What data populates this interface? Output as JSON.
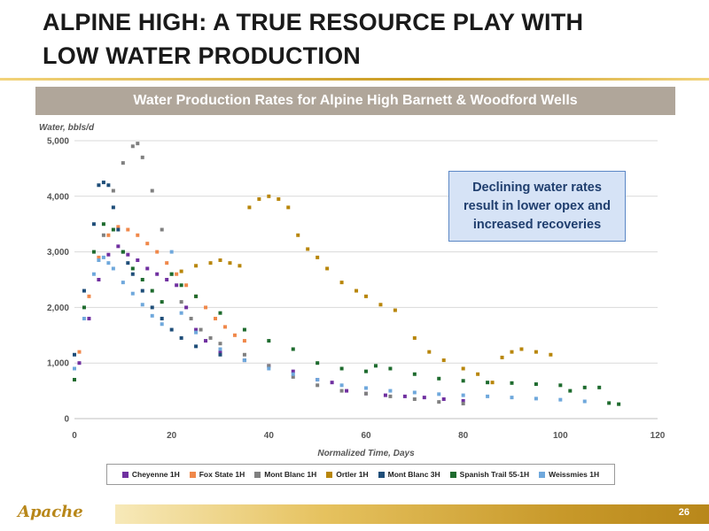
{
  "page": {
    "title_line1": "ALPINE HIGH: A TRUE RESOURCE PLAY WITH",
    "title_line2": "LOW WATER PRODUCTION",
    "page_number": "26",
    "logo_text": "Apache",
    "accent_gold": "#c99a20"
  },
  "callout": {
    "line1": "Declining water rates",
    "line2": "result in lower opex and",
    "line3": "increased recoveries"
  },
  "chart_data": {
    "type": "scatter",
    "title": "Water Production Rates for Alpine High Barnett & Woodford Wells",
    "xlabel": "Normalized Time, Days",
    "ylabel": "Water, bbls/d",
    "xlim": [
      0,
      120
    ],
    "ylim": [
      0,
      5000
    ],
    "x_ticks": [
      "0",
      "20",
      "40",
      "60",
      "80",
      "100",
      "120"
    ],
    "y_ticks": [
      "0",
      "1,000",
      "2,000",
      "3,000",
      "4,000",
      "5,000"
    ],
    "grid": true,
    "legend_position": "bottom",
    "series": [
      {
        "name": "Cheyenne 1H",
        "color": "#7030a0",
        "x": [
          1,
          3,
          5,
          7,
          9,
          11,
          13,
          15,
          17,
          19,
          21,
          23,
          25,
          27,
          30,
          35,
          40,
          45,
          50,
          53,
          56,
          60,
          64,
          68,
          72,
          76,
          80
        ],
        "y": [
          1000,
          1800,
          2500,
          2950,
          3100,
          2950,
          2850,
          2700,
          2600,
          2500,
          2400,
          2000,
          1600,
          1400,
          1200,
          1050,
          950,
          850,
          700,
          650,
          500,
          450,
          420,
          400,
          380,
          350,
          320
        ]
      },
      {
        "name": "Fox State 1H",
        "color": "#f0884a",
        "x": [
          1,
          3,
          5,
          7,
          9,
          11,
          13,
          15,
          17,
          19,
          21,
          23,
          25,
          27,
          29,
          31,
          33,
          35
        ],
        "y": [
          1200,
          2200,
          2900,
          3300,
          3450,
          3400,
          3300,
          3150,
          3000,
          2800,
          2600,
          2400,
          2200,
          2000,
          1800,
          1650,
          1500,
          1400
        ]
      },
      {
        "name": "Mont Blanc 1H",
        "color": "#808080",
        "x": [
          6,
          8,
          10,
          12,
          13,
          14,
          16,
          18,
          20,
          22,
          24,
          26,
          28,
          30,
          35,
          40,
          45,
          50,
          55,
          60,
          65,
          70,
          75,
          80
        ],
        "y": [
          3300,
          4100,
          4600,
          4900,
          4950,
          4700,
          4100,
          3400,
          2600,
          2100,
          1800,
          1600,
          1450,
          1350,
          1150,
          950,
          750,
          600,
          500,
          450,
          400,
          350,
          300,
          270
        ]
      },
      {
        "name": "Ortler 1H",
        "color": "#b8860b",
        "x": [
          22,
          25,
          28,
          30,
          32,
          34,
          36,
          38,
          40,
          42,
          44,
          46,
          48,
          50,
          52,
          55,
          58,
          60,
          63,
          66,
          70,
          73,
          76,
          80,
          83,
          86,
          88,
          90,
          92,
          95,
          98
        ],
        "y": [
          2650,
          2750,
          2800,
          2850,
          2800,
          2750,
          3800,
          3950,
          4000,
          3950,
          3800,
          3300,
          3050,
          2900,
          2700,
          2450,
          2300,
          2200,
          2050,
          1950,
          1450,
          1200,
          1050,
          900,
          800,
          650,
          1100,
          1200,
          1250,
          1200,
          1150
        ]
      },
      {
        "name": "Mont Blanc 3H",
        "color": "#1f4e79",
        "x": [
          0,
          2,
          4,
          5,
          6,
          7,
          8,
          9,
          10,
          11,
          12,
          14,
          16,
          18,
          20,
          22,
          25,
          30,
          35
        ],
        "y": [
          1150,
          2300,
          3500,
          4200,
          4250,
          4200,
          3800,
          3400,
          3000,
          2800,
          2600,
          2300,
          2000,
          1800,
          1600,
          1450,
          1300,
          1150,
          1050
        ]
      },
      {
        "name": "Spanish Trail 55-1H",
        "color": "#1e6b2e",
        "x": [
          0,
          2,
          4,
          6,
          8,
          10,
          12,
          14,
          16,
          18,
          20,
          22,
          25,
          30,
          35,
          40,
          45,
          50,
          55,
          60,
          62,
          65,
          70,
          75,
          80,
          85,
          90,
          95,
          100,
          102,
          105,
          108,
          110,
          112
        ],
        "y": [
          700,
          2000,
          3000,
          3500,
          3400,
          3000,
          2700,
          2500,
          2300,
          2100,
          2600,
          2400,
          2200,
          1900,
          1600,
          1400,
          1250,
          1000,
          900,
          850,
          950,
          900,
          800,
          720,
          680,
          650,
          640,
          620,
          600,
          500,
          560,
          560,
          280,
          260
        ]
      },
      {
        "name": "Weissmies 1H",
        "color": "#6fa8dc",
        "x": [
          0,
          2,
          4,
          5,
          6,
          7,
          8,
          10,
          12,
          14,
          16,
          18,
          20,
          22,
          25,
          30,
          35,
          40,
          45,
          50,
          55,
          60,
          65,
          70,
          75,
          80,
          85,
          90,
          95,
          100,
          105
        ],
        "y": [
          900,
          1800,
          2600,
          2850,
          2900,
          2800,
          2700,
          2450,
          2250,
          2050,
          1850,
          1700,
          3000,
          1900,
          1550,
          1250,
          1050,
          900,
          800,
          700,
          600,
          550,
          500,
          470,
          440,
          420,
          400,
          380,
          360,
          340,
          310
        ]
      }
    ]
  }
}
